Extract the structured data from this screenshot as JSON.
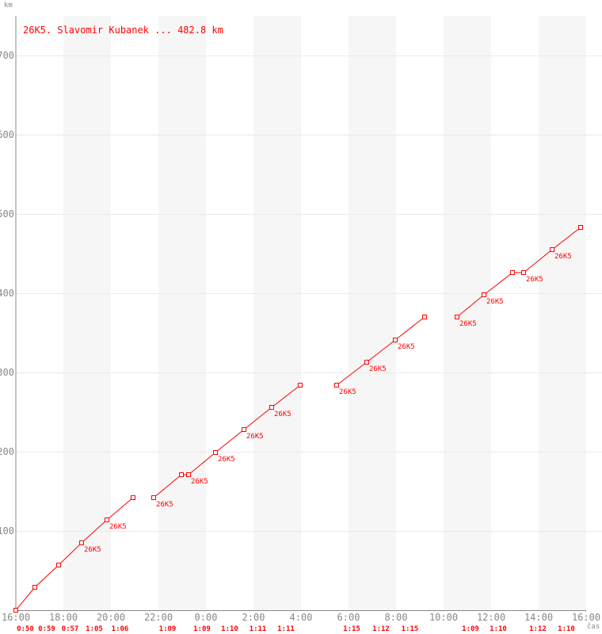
{
  "chart_data": {
    "type": "line",
    "title": "26K5. Slavomir Kubanek ... 482.8 km",
    "xlabel": "čas",
    "ylabel": "km",
    "x_ticks": [
      "16:00",
      "18:00",
      "20:00",
      "22:00",
      "0:00",
      "2:00",
      "4:00",
      "6:00",
      "8:00",
      "10:00",
      "12:00",
      "14:00",
      "16:00"
    ],
    "y_ticks": [
      100,
      200,
      300,
      400,
      500,
      600,
      700
    ],
    "xlim_hours": [
      0,
      24
    ],
    "x_start": "16:00",
    "ylim": [
      0,
      750
    ],
    "grid": true,
    "shaded_bands": "alternate 2-hour",
    "color": "#ff0000",
    "point_label": "26K5",
    "segments": [
      [
        {
          "t": "16:00",
          "km": 0
        },
        {
          "t": "16:48",
          "km": 29
        },
        {
          "t": "17:48",
          "km": 57
        },
        {
          "t": "18:46",
          "km": 85,
          "label": true
        },
        {
          "t": "19:50",
          "km": 114,
          "label": true
        },
        {
          "t": "20:56",
          "km": 142
        }
      ],
      [
        {
          "t": "21:48",
          "km": 142,
          "label": true
        },
        {
          "t": "22:58",
          "km": 171
        },
        {
          "t": "23:16",
          "km": 171,
          "label": true
        },
        {
          "t": "0:24",
          "km": 199,
          "label": true
        },
        {
          "t": "1:36",
          "km": 228,
          "label": true
        },
        {
          "t": "2:46",
          "km": 256,
          "label": true
        },
        {
          "t": "3:58",
          "km": 284
        }
      ],
      [
        {
          "t": "5:30",
          "km": 284,
          "label": true
        },
        {
          "t": "6:46",
          "km": 313,
          "label": true
        },
        {
          "t": "7:58",
          "km": 341,
          "label": true
        },
        {
          "t": "9:12",
          "km": 370
        }
      ],
      [
        {
          "t": "10:34",
          "km": 370,
          "label": true
        },
        {
          "t": "11:42",
          "km": 398,
          "label": true
        },
        {
          "t": "12:54",
          "km": 426
        },
        {
          "t": "13:22",
          "km": 426,
          "label": true
        },
        {
          "t": "14:34",
          "km": 455,
          "label": true
        },
        {
          "t": "15:46",
          "km": 483
        }
      ]
    ],
    "lap_times": [
      "0:50",
      "0:59",
      "0:57",
      "1:05",
      "1:06",
      "1:09",
      "1:09",
      "1:10",
      "1:11",
      "1:11",
      "1:15",
      "1:12",
      "1:15",
      "1:09",
      "1:10",
      "1:12",
      "1:10"
    ]
  }
}
